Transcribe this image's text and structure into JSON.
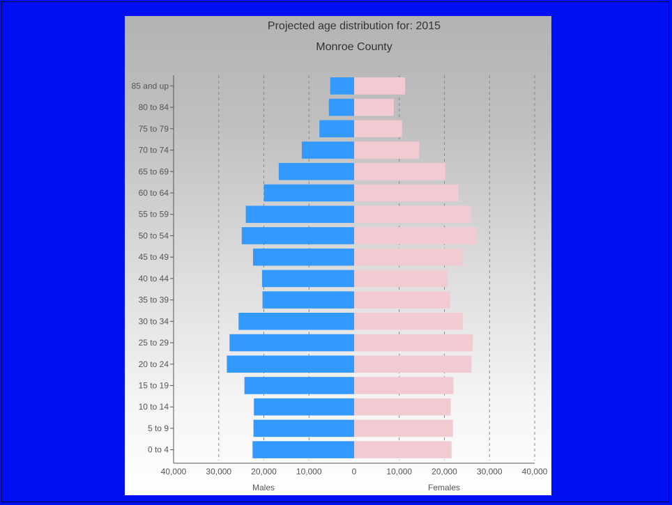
{
  "chart_data": {
    "type": "bar",
    "orientation": "horizontal",
    "style": "population-pyramid",
    "title": "Projected age distribution for: 2015",
    "subtitle": "Monroe County",
    "categories": [
      "0 to 4",
      "5 to 9",
      "10 to 14",
      "15 to 19",
      "20 to 24",
      "25 to 29",
      "30 to 34",
      "35 to 39",
      "40 to 44",
      "45 to 49",
      "50 to 54",
      "55 to 59",
      "60 to 64",
      "65 to 69",
      "70 to 74",
      "75 to 79",
      "80 to 84",
      "85 and up"
    ],
    "series": [
      {
        "name": "Males",
        "color": "#3399ff",
        "values": [
          22500,
          22300,
          22200,
          24300,
          28200,
          27600,
          25600,
          20300,
          20400,
          22400,
          24900,
          24000,
          20000,
          16700,
          11600,
          7700,
          5600,
          5300
        ]
      },
      {
        "name": "Females",
        "color": "#f2cbd2",
        "values": [
          21600,
          21900,
          21400,
          22000,
          26000,
          26300,
          24100,
          21300,
          20700,
          24000,
          27200,
          25900,
          23100,
          20200,
          14400,
          10600,
          8800,
          11300
        ]
      }
    ],
    "x_ticks": [
      "40,000",
      "30,000",
      "20,000",
      "10,000",
      "0",
      "10,000",
      "20,000",
      "30,000",
      "40,000"
    ],
    "xlim": [
      -40000,
      40000
    ],
    "xlabel_left": "Males",
    "xlabel_right": "Females",
    "grid": "vertical-dashed"
  }
}
